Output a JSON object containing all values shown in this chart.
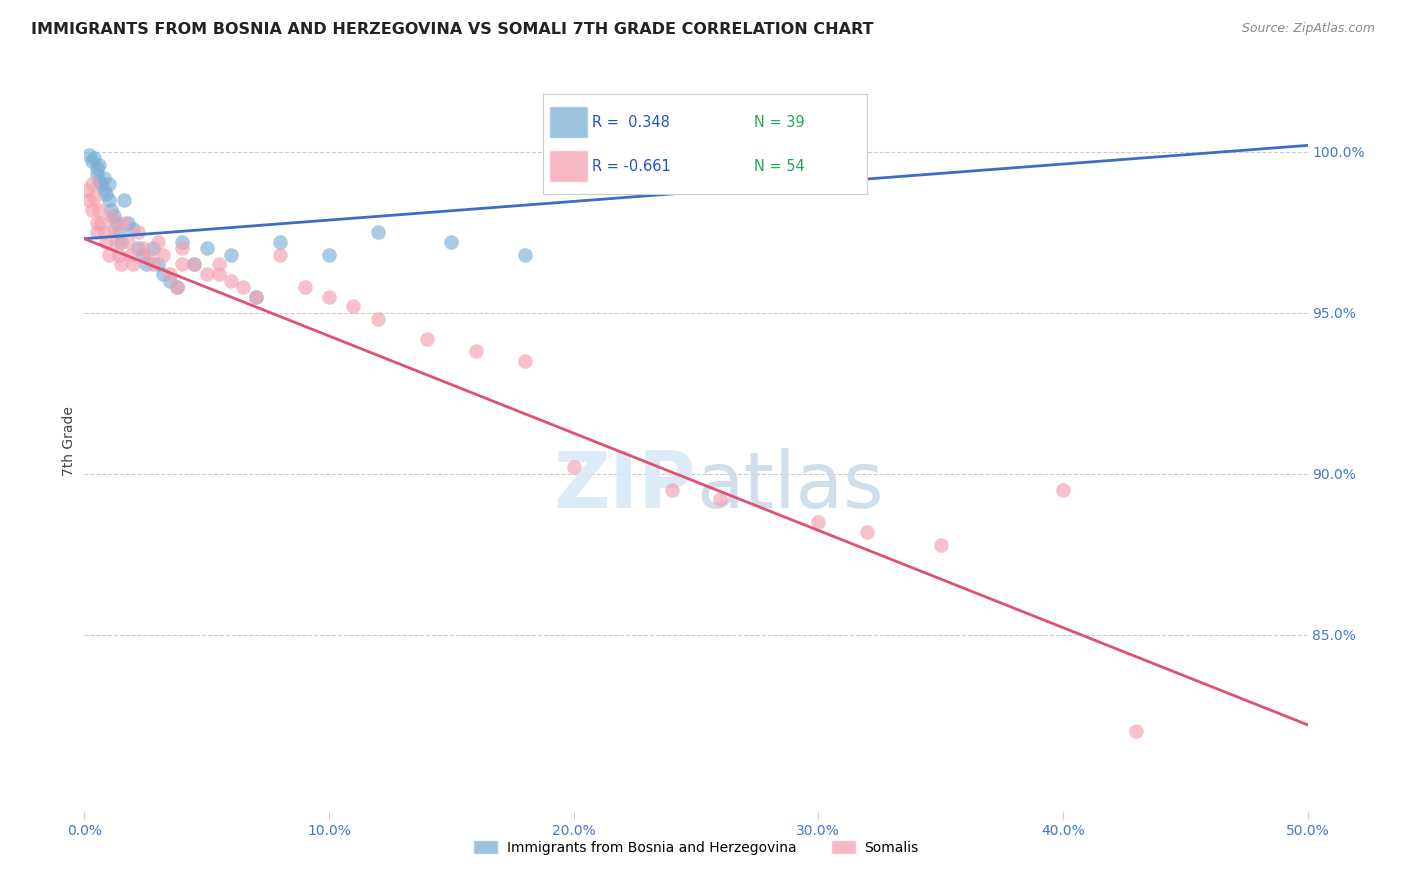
{
  "title": "IMMIGRANTS FROM BOSNIA AND HERZEGOVINA VS SOMALI 7TH GRADE CORRELATION CHART",
  "source": "Source: ZipAtlas.com",
  "ylabel": "7th Grade",
  "ytick_labels": [
    "100.0%",
    "95.0%",
    "90.0%",
    "85.0%"
  ],
  "ytick_values": [
    1.0,
    0.95,
    0.9,
    0.85
  ],
  "xlim": [
    0.0,
    0.5
  ],
  "ylim": [
    0.795,
    1.025
  ],
  "legend_bosnia": "Immigrants from Bosnia and Herzegovina",
  "legend_somali": "Somalis",
  "R_bosnia": 0.348,
  "N_bosnia": 39,
  "R_somali": -0.661,
  "N_somali": 54,
  "color_bosnia": "#7BAFD4",
  "color_somali": "#F4A0B0",
  "line_color_bosnia": "#3A6FC4",
  "line_color_somali": "#E05070",
  "watermark_zip": "ZIP",
  "watermark_atlas": "atlas",
  "bosnia_x": [
    0.002,
    0.003,
    0.004,
    0.005,
    0.005,
    0.006,
    0.006,
    0.007,
    0.008,
    0.008,
    0.009,
    0.01,
    0.01,
    0.011,
    0.012,
    0.013,
    0.014,
    0.015,
    0.016,
    0.018,
    0.02,
    0.022,
    0.024,
    0.025,
    0.028,
    0.03,
    0.032,
    0.035,
    0.038,
    0.04,
    0.045,
    0.05,
    0.06,
    0.07,
    0.08,
    0.1,
    0.12,
    0.15,
    0.18
  ],
  "bosnia_y": [
    0.999,
    0.997,
    0.998,
    0.995,
    0.993,
    0.991,
    0.996,
    0.99,
    0.992,
    0.988,
    0.987,
    0.985,
    0.99,
    0.982,
    0.98,
    0.978,
    0.975,
    0.972,
    0.985,
    0.978,
    0.976,
    0.97,
    0.968,
    0.965,
    0.97,
    0.965,
    0.962,
    0.96,
    0.958,
    0.972,
    0.965,
    0.97,
    0.968,
    0.955,
    0.972,
    0.968,
    0.975,
    0.972,
    0.968
  ],
  "somali_x": [
    0.001,
    0.002,
    0.003,
    0.003,
    0.004,
    0.005,
    0.005,
    0.006,
    0.007,
    0.008,
    0.009,
    0.01,
    0.011,
    0.012,
    0.013,
    0.014,
    0.015,
    0.016,
    0.018,
    0.019,
    0.02,
    0.022,
    0.024,
    0.026,
    0.028,
    0.03,
    0.032,
    0.035,
    0.038,
    0.04,
    0.045,
    0.05,
    0.055,
    0.06,
    0.065,
    0.07,
    0.08,
    0.09,
    0.1,
    0.11,
    0.12,
    0.14,
    0.16,
    0.18,
    0.2,
    0.24,
    0.26,
    0.3,
    0.32,
    0.35,
    0.04,
    0.055,
    0.4,
    0.43
  ],
  "somali_y": [
    0.988,
    0.985,
    0.982,
    0.99,
    0.986,
    0.978,
    0.975,
    0.982,
    0.978,
    0.975,
    0.972,
    0.968,
    0.98,
    0.976,
    0.972,
    0.968,
    0.965,
    0.978,
    0.972,
    0.968,
    0.965,
    0.975,
    0.97,
    0.968,
    0.965,
    0.972,
    0.968,
    0.962,
    0.958,
    0.97,
    0.965,
    0.962,
    0.965,
    0.96,
    0.958,
    0.955,
    0.968,
    0.958,
    0.955,
    0.952,
    0.948,
    0.942,
    0.938,
    0.935,
    0.902,
    0.895,
    0.892,
    0.885,
    0.882,
    0.878,
    0.965,
    0.962,
    0.895,
    0.82
  ]
}
